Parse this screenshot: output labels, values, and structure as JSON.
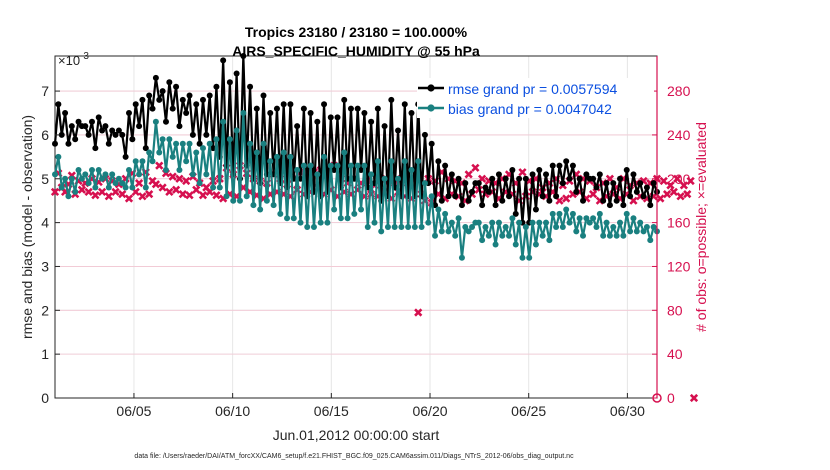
{
  "chart_data": {
    "type": "line",
    "title_line1": "Tropics 23180 / 23180 = 100.000%",
    "title_line2": "AIRS_SPECIFIC_HUMIDITY @ 55 hPa",
    "y_exponent": "×10",
    "y_exponent_power": "-3",
    "ylabel_left": "rmse and bias (model - observation)",
    "ylabel_right": "# of obs: o=possible; ×=evaluated",
    "xlabel": "Jun.01,2012 00:00:00 start",
    "footer": "data file: /Users/raeder/DAI/ATM_forcXX/CAM6_setup/f.e21.FHIST_BGC.f09_025.CAM6assim.011/Diags_NTrS_2012-06/obs_diag_output.nc",
    "xlim": [
      1,
      31.5
    ],
    "ylim_left": [
      0,
      7.8
    ],
    "ylim_right": [
      0,
      312
    ],
    "x_ticks": [
      5,
      10,
      15,
      20,
      25,
      30
    ],
    "x_tick_labels": [
      "06/05",
      "06/10",
      "06/15",
      "06/20",
      "06/25",
      "06/30"
    ],
    "y_left_ticks": [
      0,
      1,
      2,
      3,
      4,
      5,
      6,
      7
    ],
    "y_left_tick_labels": [
      "0",
      "1",
      "2",
      "3",
      "4",
      "5",
      "6",
      "7"
    ],
    "y_right_ticks": [
      0,
      40,
      80,
      120,
      160,
      200,
      240,
      280
    ],
    "y_right_tick_labels": [
      "0",
      "40",
      "80",
      "120",
      "160",
      "200",
      "240",
      "280"
    ],
    "legend_position": "top-right",
    "colors": {
      "rmse": "#000000",
      "bias": "#1a8080",
      "obs": "#d6104f",
      "legend_text": "#0b4fe0"
    },
    "series": [
      {
        "name": "rmse grand pr = 0.0057594",
        "axis": "left",
        "values": [
          5.8,
          6.7,
          6.0,
          6.5,
          5.8,
          6.2,
          5.9,
          6.3,
          6.2,
          6.2,
          6.0,
          6.3,
          5.7,
          6.4,
          6.1,
          6.2,
          5.8,
          6.1,
          6.0,
          6.1,
          6.0,
          5.5,
          6.5,
          5.9,
          6.7,
          6.2,
          6.8,
          5.7,
          6.9,
          6.6,
          7.3,
          6.8,
          7.0,
          6.3,
          7.2,
          6.6,
          7.1,
          6.2,
          6.8,
          6.5,
          6.9,
          6.0,
          6.7,
          5.8,
          6.8,
          6.0,
          6.9,
          5.7,
          7.1,
          5.5,
          7.7,
          5.3,
          7.2,
          5.1,
          7.4,
          5.0,
          7.8,
          5.3,
          7.1,
          5.0,
          6.6,
          4.9,
          6.9,
          5.1,
          6.5,
          5.1,
          6.6,
          4.9,
          6.7,
          4.8,
          6.7,
          5.0,
          6.2,
          5.0,
          6.6,
          4.6,
          6.5,
          4.7,
          6.3,
          4.6,
          6.7,
          4.7,
          6.4,
          5.2,
          6.4,
          4.8,
          6.8,
          5.0,
          6.6,
          5.0,
          6.6,
          5.2,
          6.5,
          4.8,
          6.3,
          4.9,
          6.6,
          4.5,
          6.2,
          4.6,
          6.8,
          4.8,
          6.1,
          4.6,
          6.7,
          4.6,
          6.5,
          4.6,
          6.7,
          4.6,
          6.0,
          4.9,
          5.8,
          4.4,
          5.4,
          4.5,
          5.3,
          4.6,
          5.1,
          4.6,
          5.0,
          4.4,
          4.9,
          4.5,
          4.7,
          4.9,
          4.9,
          4.4,
          4.8,
          4.7,
          5.0,
          4.4,
          5.1,
          4.5,
          5.0,
          4.6,
          5.2,
          4.2,
          5.0,
          4.0,
          5.0,
          4.0,
          5.1,
          4.3,
          5.2,
          4.6,
          5.1,
          4.5,
          5.3,
          4.6,
          5.3,
          4.9,
          5.4,
          5.0,
          5.3,
          4.7,
          5.0,
          4.5,
          5.1,
          5.0,
          5.0,
          4.8,
          5.1,
          4.5,
          4.9,
          4.4,
          4.9,
          4.5,
          5.0,
          4.4,
          5.2,
          4.6,
          5.1,
          4.7,
          4.9,
          4.6,
          4.8,
          4.4,
          4.9,
          4.7
        ]
      },
      {
        "name": "bias grand pr = 0.0047042",
        "axis": "left",
        "values": [
          5.1,
          5.5,
          4.8,
          5.0,
          4.6,
          5.0,
          4.7,
          5.2,
          5.0,
          5.1,
          4.9,
          5.2,
          4.8,
          5.2,
          5.0,
          5.1,
          4.8,
          5.1,
          4.9,
          5.0,
          4.9,
          4.8,
          5.2,
          4.8,
          5.4,
          5.1,
          5.4,
          4.8,
          5.6,
          5.4,
          6.3,
          5.6,
          5.9,
          5.2,
          5.9,
          5.5,
          5.8,
          5.2,
          5.8,
          5.4,
          5.8,
          5.1,
          5.6,
          4.9,
          5.7,
          5.1,
          5.8,
          4.8,
          5.9,
          4.8,
          6.3,
          4.6,
          5.9,
          4.5,
          6.1,
          4.5,
          6.5,
          4.6,
          5.8,
          4.4,
          5.6,
          4.3,
          5.8,
          4.5,
          5.4,
          4.4,
          5.5,
          4.2,
          5.6,
          4.1,
          5.5,
          4.1,
          5.2,
          4.0,
          5.3,
          3.9,
          5.3,
          3.9,
          5.1,
          4.0,
          5.5,
          4.0,
          5.3,
          4.3,
          5.3,
          4.1,
          5.6,
          4.1,
          5.3,
          4.2,
          5.3,
          4.3,
          5.3,
          3.9,
          5.1,
          4.0,
          5.4,
          3.8,
          5.0,
          3.9,
          5.4,
          3.9,
          5.0,
          3.9,
          5.4,
          3.9,
          5.2,
          3.9,
          5.4,
          3.9,
          4.9,
          4.0,
          4.6,
          3.7,
          4.3,
          3.8,
          4.2,
          3.8,
          4.0,
          3.7,
          4.1,
          3.2,
          3.9,
          3.8,
          3.9,
          4.0,
          4.0,
          3.6,
          3.9,
          3.7,
          4.0,
          3.5,
          4.0,
          3.7,
          3.9,
          3.7,
          4.1,
          3.5,
          4.0,
          3.2,
          3.9,
          3.2,
          4.0,
          3.5,
          4.0,
          3.7,
          4.0,
          3.6,
          4.2,
          3.9,
          4.2,
          3.9,
          4.3,
          4.0,
          4.2,
          3.8,
          4.1,
          3.7,
          4.1,
          4.0,
          4.1,
          3.9,
          4.2,
          3.7,
          4.0,
          3.7,
          3.9,
          3.7,
          4.0,
          3.7,
          4.2,
          3.8,
          4.1,
          3.8,
          4.0,
          3.8,
          3.9,
          3.6,
          3.9,
          3.8
        ]
      },
      {
        "name": "# of obs evaluated",
        "axis": "right",
        "values": [
          188,
          205,
          192,
          188,
          195,
          203,
          186,
          198,
          190,
          196,
          188,
          200,
          185,
          197,
          188,
          200,
          184,
          198,
          188,
          195,
          186,
          200,
          182,
          205,
          188,
          196,
          184,
          206,
          186,
          198,
          195,
          212,
          192,
          205,
          188,
          202,
          190,
          200,
          186,
          198,
          185,
          202,
          190,
          196,
          185,
          192,
          188,
          198,
          185,
          200,
          182,
          210,
          186,
          204,
          184,
          212,
          192,
          205,
          188,
          200,
          185,
          198,
          182,
          196,
          186,
          204,
          188,
          200,
          186,
          195,
          184,
          200,
          190,
          206,
          186,
          198,
          188,
          206,
          192,
          208,
          186,
          205,
          190,
          212,
          184,
          200,
          188,
          196,
          186,
          200,
          190,
          196,
          184,
          198,
          186,
          194,
          184,
          200,
          188,
          198,
          182,
          196,
          188,
          200,
          184,
          196,
          182,
          200,
          78,
          186,
          180,
          200,
          178,
          198,
          186,
          206,
          182,
          200,
          186,
          198,
          184,
          196,
          180,
          204,
          186,
          210,
          190,
          200,
          186,
          198,
          188,
          196,
          182,
          200,
          188,
          204,
          186,
          196,
          180,
          206,
          184,
          198,
          188,
          200,
          186,
          192,
          184,
          196,
          188,
          200,
          180,
          194,
          182,
          198,
          186,
          204,
          188,
          200,
          182,
          198,
          186,
          192,
          180,
          196,
          184,
          200,
          186,
          192,
          182,
          200,
          186,
          194,
          180,
          196,
          184,
          198,
          182,
          196,
          184,
          200,
          182,
          198,
          186,
          194,
          188,
          200,
          184,
          194,
          186,
          198,
          0
        ]
      }
    ],
    "obs_possible_marker": {
      "x": 31.5,
      "value": 0
    }
  }
}
